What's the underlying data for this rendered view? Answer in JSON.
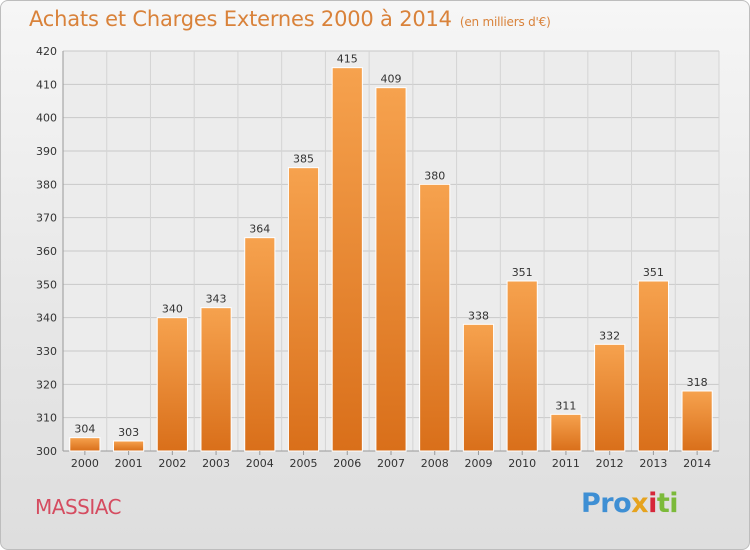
{
  "header": {
    "title": "Achats et Charges Externes 2000 à 2014",
    "subtitle": "(en milliers d'€)"
  },
  "footer": {
    "commune": "MASSIAC",
    "logo": {
      "p1": "Pro",
      "p2": "x",
      "p3": "i",
      "p4": "ti"
    }
  },
  "colors": {
    "bar_light": "#f6a24e",
    "bar_dark": "#d96f1a",
    "title": "#d9823a",
    "commune": "#d54c60"
  },
  "chart_data": {
    "type": "bar",
    "title": "Achats et Charges Externes 2000 à 2014",
    "subtitle": "(en milliers d'€)",
    "categories": [
      "2000",
      "2001",
      "2002",
      "2003",
      "2004",
      "2005",
      "2006",
      "2007",
      "2008",
      "2009",
      "2010",
      "2011",
      "2012",
      "2013",
      "2014"
    ],
    "values": [
      304,
      303,
      340,
      343,
      364,
      385,
      415,
      409,
      380,
      338,
      351,
      311,
      332,
      351,
      318
    ],
    "ylim": [
      300,
      420
    ],
    "yticks": [
      300,
      310,
      320,
      330,
      340,
      350,
      360,
      370,
      380,
      390,
      400,
      410,
      420
    ],
    "grid": true,
    "xlabel": "",
    "ylabel": ""
  }
}
